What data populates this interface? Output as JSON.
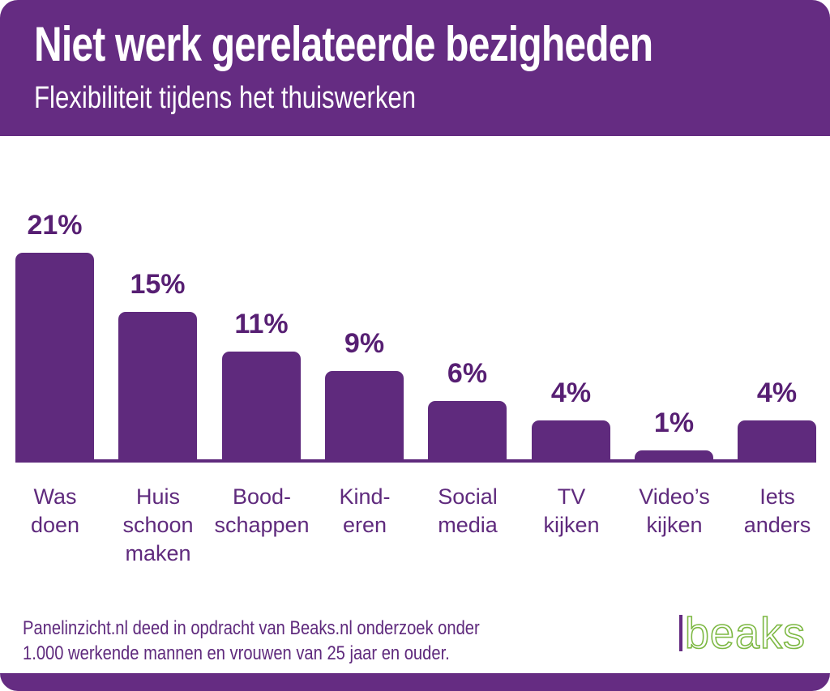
{
  "header": {
    "title": "Niet werk gerelateerde bezigheden",
    "subtitle": "Flexibiliteit tijdens het thuiswerken"
  },
  "chart_data": {
    "type": "bar",
    "title": "Niet werk gerelateerde bezigheden",
    "subtitle": "Flexibiliteit tijdens het thuiswerken",
    "categories": [
      "Was\ndoen",
      "Huis\nschoon\nmaken",
      "Bood-\nschappen",
      "Kind-\neren",
      "Social\nmedia",
      "TV\nkijken",
      "Video’s\nkijken",
      "Iets\nanders"
    ],
    "values": [
      21,
      15,
      11,
      9,
      6,
      4,
      1,
      4
    ],
    "value_labels": [
      "21%",
      "15%",
      "11%",
      "9%",
      "6%",
      "4%",
      "1%",
      "4%"
    ],
    "unit": "%",
    "ylim": [
      0,
      22
    ],
    "grid": false,
    "legend": false,
    "bar_color": "#5F2A7D",
    "value_label_color": "#571F73",
    "category_label_color": "#5F2A7D"
  },
  "footer": {
    "note": "Panelinzicht.nl deed in opdracht van Beaks.nl onderzoek onder\n1.000 werkende mannen en vrouwen van 25 jaar en ouder.",
    "logo_text": "beaks"
  },
  "colors": {
    "header_purple": "#652C82",
    "bar_purple": "#5F2A7D",
    "text_purple": "#571F73",
    "logo_green": "#7DB843",
    "background": "#FFFFFF"
  }
}
